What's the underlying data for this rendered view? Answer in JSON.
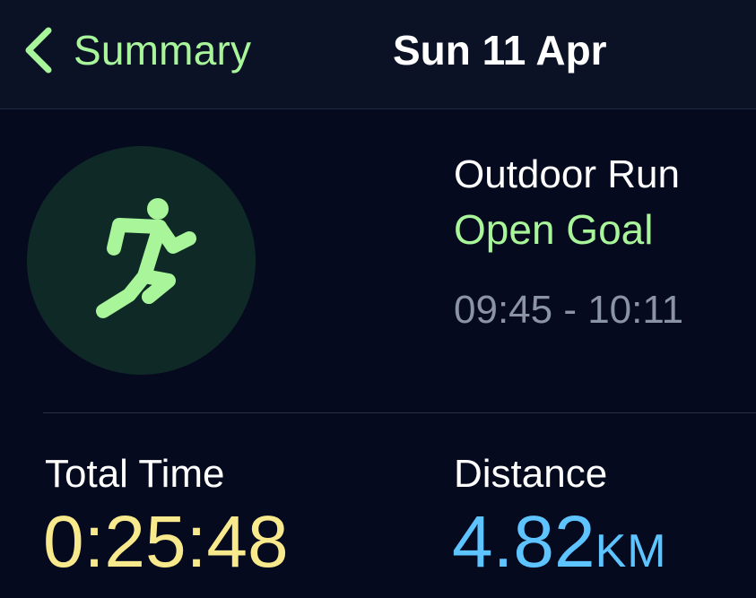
{
  "navbar": {
    "back_label": "Summary",
    "title": "Sun 11 Apr"
  },
  "workout": {
    "icon": "running-figure-icon",
    "type": "Outdoor Run",
    "goal": "Open Goal",
    "time_range": "09:45 - 10:11"
  },
  "metrics": {
    "total_time": {
      "label": "Total Time",
      "value": "0:25:48"
    },
    "distance": {
      "label": "Distance",
      "value": "4.82",
      "unit": "KM"
    }
  },
  "colors": {
    "background": "#060a1f",
    "navbar": "#0b1226",
    "accent_green": "#a8f59a",
    "time_yellow": "#f7e98c",
    "distance_blue": "#5ec4ff",
    "secondary_text": "#8a93a8",
    "icon_circle": "#0f2a26"
  }
}
